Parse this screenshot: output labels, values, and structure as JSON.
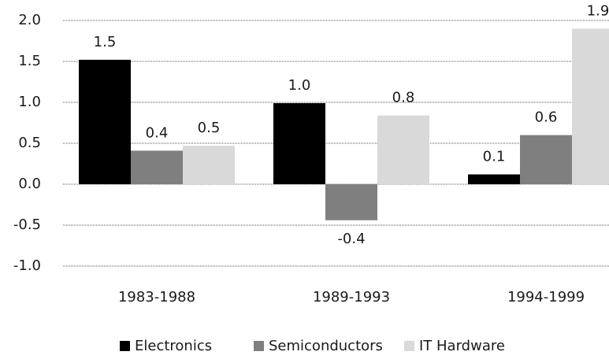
{
  "chart_data": {
    "type": "bar",
    "categories": [
      "1983-1988",
      "1989-1993",
      "1994-1999"
    ],
    "series": [
      {
        "name": "Electronics",
        "color": "#000000",
        "values": [
          1.52,
          0.99,
          0.12
        ],
        "value_labels": [
          "1.5",
          "1.0",
          "0.1"
        ]
      },
      {
        "name": "Semiconductors",
        "color": "#7f7f7f",
        "values": [
          0.41,
          -0.44,
          0.6
        ],
        "value_labels": [
          "0.4",
          "-0.4",
          "0.6"
        ]
      },
      {
        "name": "IT Hardware",
        "color": "#d9d9d9",
        "values": [
          0.47,
          0.84,
          1.9
        ],
        "value_labels": [
          "0.5",
          "0.8",
          "1.9"
        ]
      }
    ],
    "ylim": [
      -1.0,
      2.0
    ],
    "yticks": [
      {
        "value": -1.0,
        "label": "-1.0"
      },
      -0.5,
      {
        "value": 0.0,
        "label": "0.0"
      },
      0.5,
      {
        "value": 1.0,
        "label": "1.0"
      },
      1.5,
      {
        "value": 2.0,
        "label": "2.0"
      }
    ],
    "grid": true,
    "legend": "bottom"
  }
}
